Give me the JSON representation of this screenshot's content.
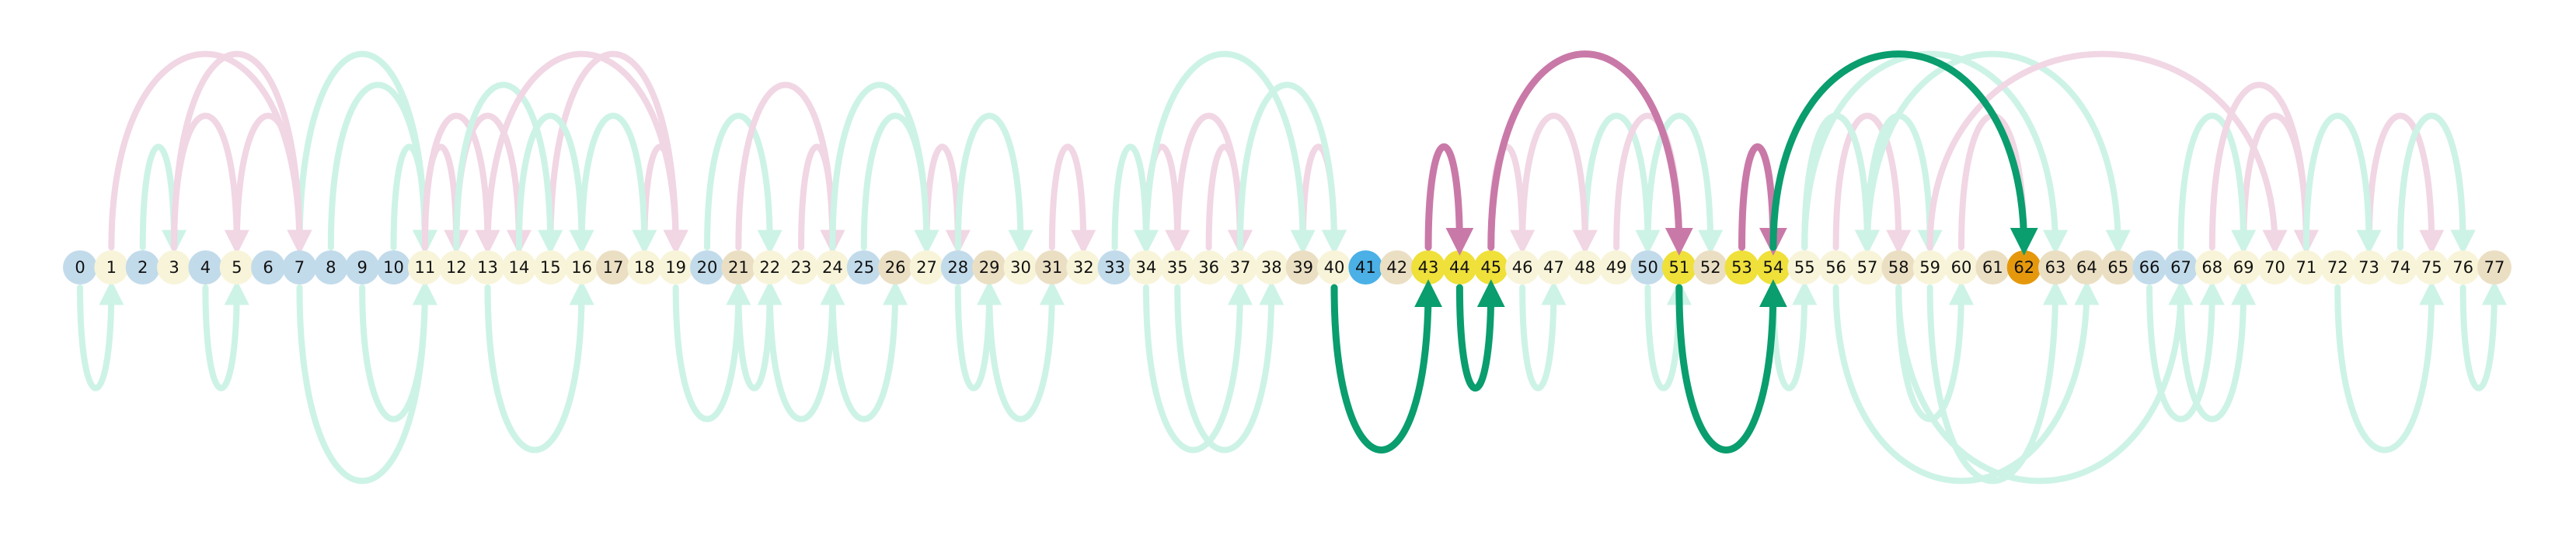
{
  "colors": {
    "blue": "#c2dbeb",
    "cream": "#f8f4d9",
    "tan": "#ebdfc3",
    "yellow": "#efe03a",
    "orange": "#e6980c",
    "bright_blue": "#4ab0e6",
    "green_faint": "#cdf3e6",
    "pink_faint": "#f1d6e4",
    "green": "#0a9d6e",
    "pink": "#c979a8"
  },
  "nodes": [
    {
      "label": "0",
      "color": "blue"
    },
    {
      "label": "1",
      "color": "cream"
    },
    {
      "label": "2",
      "color": "blue"
    },
    {
      "label": "3",
      "color": "cream"
    },
    {
      "label": "4",
      "color": "blue"
    },
    {
      "label": "5",
      "color": "cream"
    },
    {
      "label": "6",
      "color": "blue"
    },
    {
      "label": "7",
      "color": "blue"
    },
    {
      "label": "8",
      "color": "blue"
    },
    {
      "label": "9",
      "color": "blue"
    },
    {
      "label": "10",
      "color": "blue"
    },
    {
      "label": "11",
      "color": "cream"
    },
    {
      "label": "12",
      "color": "cream"
    },
    {
      "label": "13",
      "color": "cream"
    },
    {
      "label": "14",
      "color": "cream"
    },
    {
      "label": "15",
      "color": "cream"
    },
    {
      "label": "16",
      "color": "cream"
    },
    {
      "label": "17",
      "color": "tan"
    },
    {
      "label": "18",
      "color": "cream"
    },
    {
      "label": "19",
      "color": "cream"
    },
    {
      "label": "20",
      "color": "blue"
    },
    {
      "label": "21",
      "color": "tan"
    },
    {
      "label": "22",
      "color": "cream"
    },
    {
      "label": "23",
      "color": "cream"
    },
    {
      "label": "24",
      "color": "cream"
    },
    {
      "label": "25",
      "color": "blue"
    },
    {
      "label": "26",
      "color": "tan"
    },
    {
      "label": "27",
      "color": "cream"
    },
    {
      "label": "28",
      "color": "blue"
    },
    {
      "label": "29",
      "color": "tan"
    },
    {
      "label": "30",
      "color": "cream"
    },
    {
      "label": "31",
      "color": "tan"
    },
    {
      "label": "32",
      "color": "cream"
    },
    {
      "label": "33",
      "color": "blue"
    },
    {
      "label": "34",
      "color": "cream"
    },
    {
      "label": "35",
      "color": "cream"
    },
    {
      "label": "36",
      "color": "cream"
    },
    {
      "label": "37",
      "color": "cream"
    },
    {
      "label": "38",
      "color": "cream"
    },
    {
      "label": "39",
      "color": "tan"
    },
    {
      "label": "40",
      "color": "cream"
    },
    {
      "label": "41",
      "color": "bright_blue"
    },
    {
      "label": "42",
      "color": "tan"
    },
    {
      "label": "43",
      "color": "yellow"
    },
    {
      "label": "44",
      "color": "yellow"
    },
    {
      "label": "45",
      "color": "yellow"
    },
    {
      "label": "46",
      "color": "cream"
    },
    {
      "label": "47",
      "color": "cream"
    },
    {
      "label": "48",
      "color": "cream"
    },
    {
      "label": "49",
      "color": "cream"
    },
    {
      "label": "50",
      "color": "blue"
    },
    {
      "label": "51",
      "color": "yellow"
    },
    {
      "label": "52",
      "color": "tan"
    },
    {
      "label": "53",
      "color": "yellow"
    },
    {
      "label": "54",
      "color": "yellow"
    },
    {
      "label": "55",
      "color": "cream"
    },
    {
      "label": "56",
      "color": "cream"
    },
    {
      "label": "57",
      "color": "cream"
    },
    {
      "label": "58",
      "color": "tan"
    },
    {
      "label": "59",
      "color": "cream"
    },
    {
      "label": "60",
      "color": "cream"
    },
    {
      "label": "61",
      "color": "tan"
    },
    {
      "label": "62",
      "color": "orange"
    },
    {
      "label": "63",
      "color": "tan"
    },
    {
      "label": "64",
      "color": "tan"
    },
    {
      "label": "65",
      "color": "tan"
    },
    {
      "label": "66",
      "color": "blue"
    },
    {
      "label": "67",
      "color": "blue"
    },
    {
      "label": "68",
      "color": "cream"
    },
    {
      "label": "69",
      "color": "cream"
    },
    {
      "label": "70",
      "color": "cream"
    },
    {
      "label": "71",
      "color": "cream"
    },
    {
      "label": "72",
      "color": "cream"
    },
    {
      "label": "73",
      "color": "cream"
    },
    {
      "label": "74",
      "color": "cream"
    },
    {
      "label": "75",
      "color": "cream"
    },
    {
      "label": "76",
      "color": "cream"
    },
    {
      "label": "77",
      "color": "tan"
    }
  ],
  "arcs": [
    {
      "from": 40,
      "to": 43,
      "style": "green"
    },
    {
      "from": 43,
      "to": 44,
      "style": "pink"
    },
    {
      "from": 44,
      "to": 45,
      "style": "green"
    },
    {
      "from": 45,
      "to": 51,
      "style": "pink"
    },
    {
      "from": 51,
      "to": 54,
      "style": "green"
    },
    {
      "from": 53,
      "to": 54,
      "style": "pink"
    },
    {
      "from": 54,
      "to": 62,
      "style": "green"
    },
    {
      "from": 1,
      "to": 7,
      "style": "pink_faint"
    },
    {
      "from": 2,
      "to": 3,
      "style": "green_faint"
    },
    {
      "from": 5,
      "to": 7,
      "style": "pink_faint"
    },
    {
      "from": 7,
      "to": 11,
      "style": "green_faint"
    },
    {
      "from": 9,
      "to": 11,
      "style": "green_faint"
    },
    {
      "from": 10,
      "to": 11,
      "style": "green_faint"
    },
    {
      "from": 11,
      "to": 13,
      "style": "pink_faint"
    },
    {
      "from": 12,
      "to": 14,
      "style": "pink_faint"
    },
    {
      "from": 13,
      "to": 16,
      "style": "green_faint"
    },
    {
      "from": 15,
      "to": 19,
      "style": "pink_faint"
    },
    {
      "from": 18,
      "to": 19,
      "style": "pink_faint"
    },
    {
      "from": 20,
      "to": 22,
      "style": "green_faint"
    },
    {
      "from": 21,
      "to": 22,
      "style": "green_faint"
    },
    {
      "from": 23,
      "to": 24,
      "style": "pink_faint"
    },
    {
      "from": 24,
      "to": 26,
      "style": "green_faint"
    },
    {
      "from": 25,
      "to": 27,
      "style": "green_faint"
    },
    {
      "from": 27,
      "to": 28,
      "style": "pink_faint"
    },
    {
      "from": 31,
      "to": 32,
      "style": "pink_faint"
    },
    {
      "from": 34,
      "to": 35,
      "style": "pink_faint"
    },
    {
      "from": 35,
      "to": 37,
      "style": "pink_faint"
    },
    {
      "from": 36,
      "to": 37,
      "style": "pink_faint"
    },
    {
      "from": 39,
      "to": 40,
      "style": "pink_faint"
    },
    {
      "from": 46,
      "to": 47,
      "style": "green_faint"
    },
    {
      "from": 48,
      "to": 50,
      "style": "green_faint"
    },
    {
      "from": 50,
      "to": 51,
      "style": "green_faint"
    },
    {
      "from": 55,
      "to": 57,
      "style": "pink_faint"
    },
    {
      "from": 56,
      "to": 58,
      "style": "pink_faint"
    },
    {
      "from": 57,
      "to": 59,
      "style": "green_faint"
    },
    {
      "from": 58,
      "to": 60,
      "style": "green_faint"
    },
    {
      "from": 55,
      "to": 63,
      "style": "green_faint"
    },
    {
      "from": 56,
      "to": 64,
      "style": "green_faint"
    },
    {
      "from": 57,
      "to": 65,
      "style": "green_faint"
    },
    {
      "from": 59,
      "to": 63,
      "style": "green_faint"
    },
    {
      "from": 60,
      "to": 62,
      "style": "pink_faint"
    },
    {
      "from": 67,
      "to": 69,
      "style": "green_faint"
    },
    {
      "from": 69,
      "to": 71,
      "style": "pink_faint"
    },
    {
      "from": 73,
      "to": 75,
      "style": "pink_faint"
    },
    {
      "from": 74,
      "to": 76,
      "style": "pink_faint"
    },
    {
      "from": 0,
      "to": 1,
      "style": "green_faint"
    },
    {
      "from": 3,
      "to": 5,
      "style": "pink_faint"
    },
    {
      "from": 4,
      "to": 5,
      "style": "green_faint"
    },
    {
      "from": 3,
      "to": 7,
      "style": "pink_faint"
    },
    {
      "from": 7,
      "to": 11,
      "style": "green_faint"
    },
    {
      "from": 8,
      "to": 11,
      "style": "green_faint"
    },
    {
      "from": 11,
      "to": 12,
      "style": "pink_faint"
    },
    {
      "from": 12,
      "to": 15,
      "style": "green_faint"
    },
    {
      "from": 13,
      "to": 16,
      "style": "green_faint"
    },
    {
      "from": 14,
      "to": 16,
      "style": "green_faint"
    },
    {
      "from": 13,
      "to": 19,
      "style": "pink_faint"
    },
    {
      "from": 16,
      "to": 18,
      "style": "green_faint"
    },
    {
      "from": 19,
      "to": 21,
      "style": "green_faint"
    },
    {
      "from": 21,
      "to": 24,
      "style": "pink_faint"
    },
    {
      "from": 22,
      "to": 24,
      "style": "green_faint"
    },
    {
      "from": 24,
      "to": 27,
      "style": "green_faint"
    },
    {
      "from": 28,
      "to": 29,
      "style": "green_faint"
    },
    {
      "from": 28,
      "to": 30,
      "style": "green_faint"
    },
    {
      "from": 29,
      "to": 31,
      "style": "green_faint"
    },
    {
      "from": 33,
      "to": 34,
      "style": "green_faint"
    },
    {
      "from": 34,
      "to": 37,
      "style": "green_faint"
    },
    {
      "from": 34,
      "to": 39,
      "style": "green_faint"
    },
    {
      "from": 35,
      "to": 38,
      "style": "green_faint"
    },
    {
      "from": 37,
      "to": 40,
      "style": "green_faint"
    },
    {
      "from": 45,
      "to": 46,
      "style": "pink_faint"
    },
    {
      "from": 46,
      "to": 48,
      "style": "pink_faint"
    },
    {
      "from": 49,
      "to": 51,
      "style": "pink_faint"
    },
    {
      "from": 50,
      "to": 52,
      "style": "green_faint"
    },
    {
      "from": 54,
      "to": 55,
      "style": "green_faint"
    },
    {
      "from": 55,
      "to": 57,
      "style": "green_faint"
    },
    {
      "from": 58,
      "to": 67,
      "style": "green_faint"
    },
    {
      "from": 59,
      "to": 70,
      "style": "pink_faint"
    },
    {
      "from": 66,
      "to": 68,
      "style": "green_faint"
    },
    {
      "from": 67,
      "to": 69,
      "style": "green_faint"
    },
    {
      "from": 68,
      "to": 71,
      "style": "pink_faint"
    },
    {
      "from": 71,
      "to": 73,
      "style": "green_faint"
    },
    {
      "from": 72,
      "to": 75,
      "style": "green_faint"
    },
    {
      "from": 74,
      "to": 76,
      "style": "green_faint"
    },
    {
      "from": 76,
      "to": 77,
      "style": "green_faint"
    }
  ]
}
